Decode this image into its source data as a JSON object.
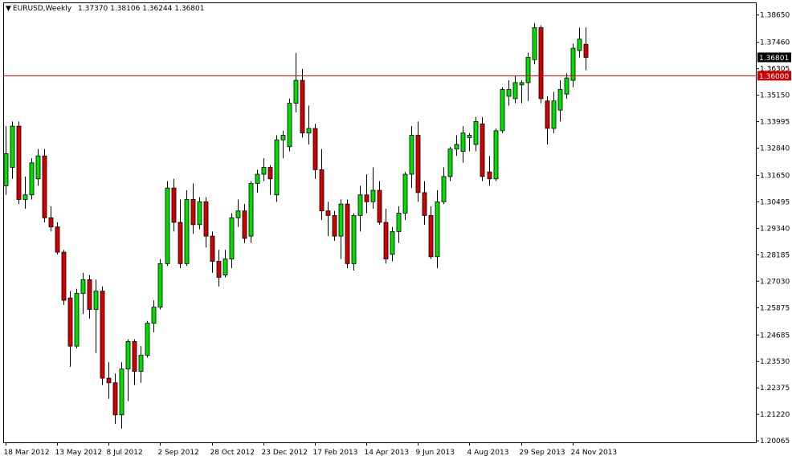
{
  "header": {
    "symbol_timeframe": "EURUSD,Weekly",
    "ohlc_text": "1.37370 1.38106 1.36244 1.36801"
  },
  "colors": {
    "background": "#ffffff",
    "bull_body": "#00e000",
    "bear_body": "#d40000",
    "wick": "#000000",
    "level_line": "#cc0000",
    "price_marker": "#000000",
    "level_marker": "#cc0000"
  },
  "chart_data": {
    "type": "candlestick",
    "symbol": "EURUSD",
    "timeframe": "Weekly",
    "ylim": [
      1.2,
      1.392
    ],
    "y_ticks": [
      "1.38650",
      "1.37460",
      "1.36305",
      "1.35150",
      "1.33995",
      "1.32840",
      "1.31650",
      "1.30495",
      "1.29340",
      "1.28185",
      "1.27030",
      "1.25875",
      "1.24685",
      "1.23530",
      "1.22375",
      "1.21220",
      "1.20065"
    ],
    "x_tick_labels": [
      {
        "label": "18 Mar 2012",
        "index": 0
      },
      {
        "label": "13 May 2012",
        "index": 8
      },
      {
        "label": "8 Jul 2012",
        "index": 16
      },
      {
        "label": "2 Sep 2012",
        "index": 24
      },
      {
        "label": "28 Oct 2012",
        "index": 32
      },
      {
        "label": "23 Dec 2012",
        "index": 40
      },
      {
        "label": "17 Feb 2013",
        "index": 48
      },
      {
        "label": "14 Apr 2013",
        "index": 56
      },
      {
        "label": "9 Jun 2013",
        "index": 64
      },
      {
        "label": "4 Aug 2013",
        "index": 72
      },
      {
        "label": "29 Sep 2013",
        "index": 80
      },
      {
        "label": "24 Nov 2013",
        "index": 88
      }
    ],
    "current_price": "1.36801",
    "horizontal_level": "1.36000",
    "candles": [
      {
        "o": 1.312,
        "h": 1.338,
        "l": 1.308,
        "c": 1.326
      },
      {
        "o": 1.32,
        "h": 1.34,
        "l": 1.315,
        "c": 1.338
      },
      {
        "o": 1.338,
        "h": 1.34,
        "l": 1.304,
        "c": 1.306
      },
      {
        "o": 1.306,
        "h": 1.316,
        "l": 1.302,
        "c": 1.308
      },
      {
        "o": 1.308,
        "h": 1.324,
        "l": 1.306,
        "c": 1.322
      },
      {
        "o": 1.315,
        "h": 1.328,
        "l": 1.312,
        "c": 1.325
      },
      {
        "o": 1.325,
        "h": 1.328,
        "l": 1.296,
        "c": 1.298
      },
      {
        "o": 1.298,
        "h": 1.303,
        "l": 1.292,
        "c": 1.294
      },
      {
        "o": 1.294,
        "h": 1.296,
        "l": 1.282,
        "c": 1.283
      },
      {
        "o": 1.283,
        "h": 1.284,
        "l": 1.26,
        "c": 1.262
      },
      {
        "o": 1.263,
        "h": 1.266,
        "l": 1.233,
        "c": 1.242
      },
      {
        "o": 1.242,
        "h": 1.267,
        "l": 1.241,
        "c": 1.265
      },
      {
        "o": 1.265,
        "h": 1.274,
        "l": 1.256,
        "c": 1.271
      },
      {
        "o": 1.271,
        "h": 1.273,
        "l": 1.254,
        "c": 1.258
      },
      {
        "o": 1.258,
        "h": 1.271,
        "l": 1.239,
        "c": 1.266
      },
      {
        "o": 1.266,
        "h": 1.268,
        "l": 1.225,
        "c": 1.228
      },
      {
        "o": 1.228,
        "h": 1.235,
        "l": 1.219,
        "c": 1.226
      },
      {
        "o": 1.226,
        "h": 1.23,
        "l": 1.208,
        "c": 1.212
      },
      {
        "o": 1.212,
        "h": 1.235,
        "l": 1.206,
        "c": 1.232
      },
      {
        "o": 1.232,
        "h": 1.245,
        "l": 1.218,
        "c": 1.244
      },
      {
        "o": 1.244,
        "h": 1.245,
        "l": 1.225,
        "c": 1.231
      },
      {
        "o": 1.231,
        "h": 1.242,
        "l": 1.226,
        "c": 1.238
      },
      {
        "o": 1.238,
        "h": 1.253,
        "l": 1.237,
        "c": 1.252
      },
      {
        "o": 1.252,
        "h": 1.262,
        "l": 1.248,
        "c": 1.259
      },
      {
        "o": 1.259,
        "h": 1.28,
        "l": 1.258,
        "c": 1.278
      },
      {
        "o": 1.278,
        "h": 1.314,
        "l": 1.277,
        "c": 1.311
      },
      {
        "o": 1.311,
        "h": 1.315,
        "l": 1.292,
        "c": 1.296
      },
      {
        "o": 1.296,
        "h": 1.306,
        "l": 1.276,
        "c": 1.278
      },
      {
        "o": 1.278,
        "h": 1.31,
        "l": 1.277,
        "c": 1.306
      },
      {
        "o": 1.306,
        "h": 1.313,
        "l": 1.291,
        "c": 1.295
      },
      {
        "o": 1.295,
        "h": 1.307,
        "l": 1.293,
        "c": 1.305
      },
      {
        "o": 1.305,
        "h": 1.307,
        "l": 1.285,
        "c": 1.29
      },
      {
        "o": 1.29,
        "h": 1.292,
        "l": 1.274,
        "c": 1.279
      },
      {
        "o": 1.279,
        "h": 1.284,
        "l": 1.268,
        "c": 1.272
      },
      {
        "o": 1.273,
        "h": 1.284,
        "l": 1.272,
        "c": 1.28
      },
      {
        "o": 1.28,
        "h": 1.3,
        "l": 1.276,
        "c": 1.298
      },
      {
        "o": 1.298,
        "h": 1.306,
        "l": 1.294,
        "c": 1.301
      },
      {
        "o": 1.301,
        "h": 1.304,
        "l": 1.287,
        "c": 1.289
      },
      {
        "o": 1.29,
        "h": 1.314,
        "l": 1.287,
        "c": 1.313
      },
      {
        "o": 1.313,
        "h": 1.319,
        "l": 1.309,
        "c": 1.317
      },
      {
        "o": 1.317,
        "h": 1.324,
        "l": 1.314,
        "c": 1.32
      },
      {
        "o": 1.32,
        "h": 1.321,
        "l": 1.308,
        "c": 1.315
      },
      {
        "o": 1.308,
        "h": 1.334,
        "l": 1.305,
        "c": 1.332
      },
      {
        "o": 1.332,
        "h": 1.336,
        "l": 1.324,
        "c": 1.334
      },
      {
        "o": 1.329,
        "h": 1.35,
        "l": 1.327,
        "c": 1.348
      },
      {
        "o": 1.348,
        "h": 1.37,
        "l": 1.344,
        "c": 1.358
      },
      {
        "o": 1.358,
        "h": 1.363,
        "l": 1.333,
        "c": 1.335
      },
      {
        "o": 1.335,
        "h": 1.347,
        "l": 1.33,
        "c": 1.337
      },
      {
        "o": 1.337,
        "h": 1.339,
        "l": 1.315,
        "c": 1.319
      },
      {
        "o": 1.319,
        "h": 1.328,
        "l": 1.297,
        "c": 1.301
      },
      {
        "o": 1.301,
        "h": 1.305,
        "l": 1.29,
        "c": 1.299
      },
      {
        "o": 1.299,
        "h": 1.301,
        "l": 1.288,
        "c": 1.29
      },
      {
        "o": 1.29,
        "h": 1.306,
        "l": 1.28,
        "c": 1.304
      },
      {
        "o": 1.304,
        "h": 1.306,
        "l": 1.276,
        "c": 1.278
      },
      {
        "o": 1.278,
        "h": 1.3,
        "l": 1.275,
        "c": 1.299
      },
      {
        "o": 1.299,
        "h": 1.312,
        "l": 1.292,
        "c": 1.308
      },
      {
        "o": 1.308,
        "h": 1.317,
        "l": 1.3,
        "c": 1.305
      },
      {
        "o": 1.305,
        "h": 1.32,
        "l": 1.302,
        "c": 1.31
      },
      {
        "o": 1.31,
        "h": 1.314,
        "l": 1.295,
        "c": 1.296
      },
      {
        "o": 1.296,
        "h": 1.302,
        "l": 1.278,
        "c": 1.28
      },
      {
        "o": 1.282,
        "h": 1.294,
        "l": 1.279,
        "c": 1.292
      },
      {
        "o": 1.292,
        "h": 1.303,
        "l": 1.287,
        "c": 1.3
      },
      {
        "o": 1.3,
        "h": 1.318,
        "l": 1.297,
        "c": 1.317
      },
      {
        "o": 1.317,
        "h": 1.338,
        "l": 1.311,
        "c": 1.334
      },
      {
        "o": 1.334,
        "h": 1.34,
        "l": 1.305,
        "c": 1.309
      },
      {
        "o": 1.309,
        "h": 1.314,
        "l": 1.295,
        "c": 1.299
      },
      {
        "o": 1.299,
        "h": 1.303,
        "l": 1.28,
        "c": 1.281
      },
      {
        "o": 1.281,
        "h": 1.31,
        "l": 1.276,
        "c": 1.305
      },
      {
        "o": 1.305,
        "h": 1.32,
        "l": 1.304,
        "c": 1.316
      },
      {
        "o": 1.316,
        "h": 1.329,
        "l": 1.314,
        "c": 1.328
      },
      {
        "o": 1.328,
        "h": 1.334,
        "l": 1.325,
        "c": 1.33
      },
      {
        "o": 1.327,
        "h": 1.338,
        "l": 1.322,
        "c": 1.335
      },
      {
        "o": 1.333,
        "h": 1.335,
        "l": 1.327,
        "c": 1.334
      },
      {
        "o": 1.33,
        "h": 1.342,
        "l": 1.327,
        "c": 1.34
      },
      {
        "o": 1.339,
        "h": 1.342,
        "l": 1.314,
        "c": 1.316
      },
      {
        "o": 1.318,
        "h": 1.325,
        "l": 1.312,
        "c": 1.315
      },
      {
        "o": 1.315,
        "h": 1.337,
        "l": 1.314,
        "c": 1.336
      },
      {
        "o": 1.336,
        "h": 1.355,
        "l": 1.335,
        "c": 1.354
      },
      {
        "o": 1.351,
        "h": 1.358,
        "l": 1.347,
        "c": 1.354
      },
      {
        "o": 1.35,
        "h": 1.36,
        "l": 1.348,
        "c": 1.357
      },
      {
        "o": 1.356,
        "h": 1.358,
        "l": 1.348,
        "c": 1.357
      },
      {
        "o": 1.357,
        "h": 1.37,
        "l": 1.349,
        "c": 1.368
      },
      {
        "o": 1.367,
        "h": 1.383,
        "l": 1.365,
        "c": 1.381
      },
      {
        "o": 1.381,
        "h": 1.382,
        "l": 1.348,
        "c": 1.35
      },
      {
        "o": 1.349,
        "h": 1.351,
        "l": 1.33,
        "c": 1.337
      },
      {
        "o": 1.337,
        "h": 1.353,
        "l": 1.335,
        "c": 1.349
      },
      {
        "o": 1.345,
        "h": 1.358,
        "l": 1.34,
        "c": 1.354
      },
      {
        "o": 1.352,
        "h": 1.361,
        "l": 1.35,
        "c": 1.359
      },
      {
        "o": 1.358,
        "h": 1.374,
        "l": 1.355,
        "c": 1.372
      },
      {
        "o": 1.371,
        "h": 1.381,
        "l": 1.368,
        "c": 1.376
      },
      {
        "o": 1.3737,
        "h": 1.38106,
        "l": 1.36244,
        "c": 1.36801
      }
    ]
  }
}
